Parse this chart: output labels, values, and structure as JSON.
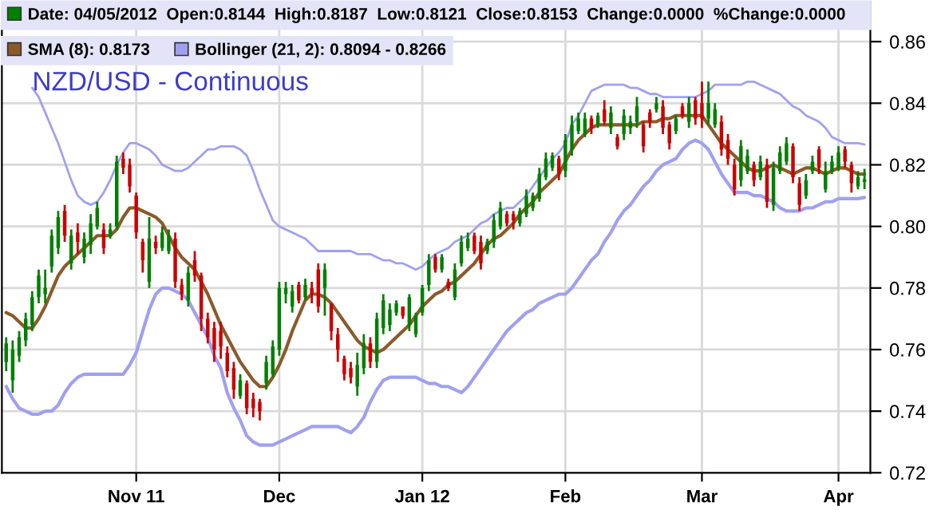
{
  "chart_data": {
    "type": "candlestick",
    "title": "NZD/USD - Continuous",
    "categories": [
      null,
      null,
      null,
      null,
      null,
      null,
      null,
      null,
      null,
      null,
      null,
      null,
      null,
      null,
      null,
      null,
      null,
      null,
      null,
      null,
      "Nov 11",
      null,
      null,
      null,
      null,
      null,
      null,
      null,
      null,
      null,
      null,
      null,
      null,
      null,
      null,
      null,
      null,
      null,
      null,
      null,
      null,
      null,
      "Dec",
      null,
      null,
      null,
      null,
      null,
      null,
      null,
      null,
      null,
      null,
      null,
      null,
      null,
      null,
      null,
      null,
      null,
      null,
      null,
      null,
      null,
      "Jan 12",
      null,
      null,
      null,
      null,
      null,
      null,
      null,
      null,
      null,
      null,
      null,
      null,
      null,
      null,
      null,
      null,
      null,
      null,
      null,
      null,
      null,
      "Feb",
      null,
      null,
      null,
      null,
      null,
      null,
      null,
      null,
      null,
      null,
      null,
      null,
      null,
      null,
      null,
      null,
      null,
      null,
      null,
      null,
      "Mar",
      null,
      null,
      null,
      null,
      null,
      null,
      null,
      null,
      null,
      null,
      null,
      null,
      null,
      null,
      null,
      null,
      null,
      null,
      null,
      null,
      "Apr",
      null,
      null,
      null,
      null
    ],
    "series": [
      {
        "name": "Date: 04/05/2012  Open:0.8144  High:0.8187  Low:0.8121  Close:0.8153  Change:0.0000  %Change:0.0000",
        "color": "#008000",
        "ohlc": [
          [
            0.756,
            0.764,
            0.753,
            0.762
          ],
          [
            0.75,
            0.763,
            0.746,
            0.76
          ],
          [
            0.758,
            0.766,
            0.756,
            0.764
          ],
          [
            0.763,
            0.772,
            0.761,
            0.77
          ],
          [
            0.768,
            0.779,
            0.766,
            0.777
          ],
          [
            0.777,
            0.786,
            0.775,
            0.784
          ],
          [
            0.778,
            0.786,
            0.775,
            0.78
          ],
          [
            0.787,
            0.799,
            0.785,
            0.797
          ],
          [
            0.793,
            0.805,
            0.791,
            0.803
          ],
          [
            0.805,
            0.807,
            0.795,
            0.797
          ],
          [
            0.788,
            0.799,
            0.786,
            0.797
          ],
          [
            0.798,
            0.801,
            0.791,
            0.795
          ],
          [
            0.79,
            0.798,
            0.788,
            0.796
          ],
          [
            0.794,
            0.804,
            0.791,
            0.801
          ],
          [
            0.8,
            0.808,
            0.799,
            0.806
          ],
          [
            0.799,
            0.801,
            0.791,
            0.793
          ],
          [
            0.797,
            0.801,
            0.796,
            0.799
          ],
          [
            0.8,
            0.823,
            0.799,
            0.821
          ],
          [
            0.822,
            0.824,
            0.817,
            0.819
          ],
          [
            0.82,
            0.822,
            0.811,
            0.813
          ],
          [
            0.81,
            0.811,
            0.796,
            0.798
          ],
          [
            0.795,
            0.796,
            0.785,
            0.789
          ],
          [
            0.782,
            0.803,
            0.78,
            0.796
          ],
          [
            0.795,
            0.797,
            0.791,
            0.793
          ],
          [
            0.793,
            0.8,
            0.792,
            0.798
          ],
          [
            0.792,
            0.799,
            0.791,
            0.797
          ],
          [
            0.796,
            0.798,
            0.78,
            0.782
          ],
          [
            0.781,
            0.783,
            0.776,
            0.778
          ],
          [
            0.776,
            0.787,
            0.774,
            0.785
          ],
          [
            0.789,
            0.792,
            0.782,
            0.784
          ],
          [
            0.784,
            0.785,
            0.766,
            0.77
          ],
          [
            0.77,
            0.772,
            0.762,
            0.764
          ],
          [
            0.767,
            0.769,
            0.756,
            0.76
          ],
          [
            0.766,
            0.769,
            0.757,
            0.761
          ],
          [
            0.759,
            0.761,
            0.751,
            0.753
          ],
          [
            0.754,
            0.756,
            0.744,
            0.747
          ],
          [
            0.745,
            0.752,
            0.744,
            0.75
          ],
          [
            0.749,
            0.75,
            0.739,
            0.741
          ],
          [
            0.744,
            0.746,
            0.738,
            0.741
          ],
          [
            0.743,
            0.744,
            0.737,
            0.74
          ],
          [
            0.749,
            0.758,
            0.747,
            0.756
          ],
          [
            0.752,
            0.763,
            0.751,
            0.761
          ],
          [
            0.76,
            0.782,
            0.758,
            0.78
          ],
          [
            0.778,
            0.782,
            0.775,
            0.78
          ],
          [
            0.774,
            0.781,
            0.772,
            0.779
          ],
          [
            0.781,
            0.782,
            0.775,
            0.776
          ],
          [
            0.777,
            0.783,
            0.776,
            0.781
          ],
          [
            0.78,
            0.782,
            0.775,
            0.778
          ],
          [
            0.786,
            0.788,
            0.772,
            0.774
          ],
          [
            0.78,
            0.788,
            0.771,
            0.786
          ],
          [
            0.775,
            0.775,
            0.763,
            0.766
          ],
          [
            0.765,
            0.767,
            0.756,
            0.76
          ],
          [
            0.757,
            0.758,
            0.75,
            0.752
          ],
          [
            0.754,
            0.756,
            0.749,
            0.751
          ],
          [
            0.748,
            0.759,
            0.745,
            0.755
          ],
          [
            0.754,
            0.765,
            0.752,
            0.762
          ],
          [
            0.762,
            0.764,
            0.754,
            0.756
          ],
          [
            0.756,
            0.772,
            0.754,
            0.77
          ],
          [
            0.767,
            0.778,
            0.765,
            0.776
          ],
          [
            0.768,
            0.775,
            0.766,
            0.773
          ],
          [
            0.772,
            0.776,
            0.771,
            0.775
          ],
          [
            0.774,
            0.774,
            0.77,
            0.771
          ],
          [
            0.768,
            0.778,
            0.766,
            0.777
          ],
          [
            0.765,
            0.772,
            0.764,
            0.771
          ],
          [
            0.772,
            0.781,
            0.771,
            0.78
          ],
          [
            0.781,
            0.791,
            0.779,
            0.789
          ],
          [
            0.79,
            0.791,
            0.785,
            0.786
          ],
          [
            0.786,
            0.791,
            0.785,
            0.79
          ],
          [
            0.782,
            0.783,
            0.779,
            0.78
          ],
          [
            0.777,
            0.788,
            0.776,
            0.786
          ],
          [
            0.788,
            0.797,
            0.787,
            0.795
          ],
          [
            0.793,
            0.798,
            0.792,
            0.796
          ],
          [
            0.797,
            0.798,
            0.791,
            0.792
          ],
          [
            0.795,
            0.797,
            0.786,
            0.788
          ],
          [
            0.792,
            0.796,
            0.791,
            0.795
          ],
          [
            0.795,
            0.804,
            0.793,
            0.802
          ],
          [
            0.8,
            0.808,
            0.799,
            0.806
          ],
          [
            0.804,
            0.805,
            0.8,
            0.801
          ],
          [
            0.804,
            0.805,
            0.799,
            0.802
          ],
          [
            0.801,
            0.806,
            0.8,
            0.805
          ],
          [
            0.804,
            0.812,
            0.803,
            0.81
          ],
          [
            0.806,
            0.811,
            0.805,
            0.81
          ],
          [
            0.809,
            0.819,
            0.808,
            0.817
          ],
          [
            0.816,
            0.824,
            0.815,
            0.822
          ],
          [
            0.819,
            0.824,
            0.818,
            0.823
          ],
          [
            0.822,
            0.823,
            0.815,
            0.817
          ],
          [
            0.818,
            0.83,
            0.816,
            0.828
          ],
          [
            0.825,
            0.836,
            0.823,
            0.833
          ],
          [
            0.831,
            0.837,
            0.83,
            0.835
          ],
          [
            0.83,
            0.837,
            0.829,
            0.835
          ],
          [
            0.835,
            0.836,
            0.83,
            0.832
          ],
          [
            0.833,
            0.837,
            0.832,
            0.836
          ],
          [
            0.838,
            0.841,
            0.833,
            0.834
          ],
          [
            0.832,
            0.839,
            0.83,
            0.837
          ],
          [
            0.829,
            0.83,
            0.825,
            0.826
          ],
          [
            0.83,
            0.838,
            0.828,
            0.836
          ],
          [
            0.832,
            0.836,
            0.83,
            0.834
          ],
          [
            0.834,
            0.842,
            0.832,
            0.839
          ],
          [
            0.833,
            0.834,
            0.824,
            0.826
          ],
          [
            0.837,
            0.838,
            0.832,
            0.834
          ],
          [
            0.838,
            0.842,
            0.837,
            0.84
          ],
          [
            0.839,
            0.841,
            0.83,
            0.832
          ],
          [
            0.833,
            0.834,
            0.825,
            0.827
          ],
          [
            0.831,
            0.836,
            0.83,
            0.835
          ],
          [
            0.839,
            0.84,
            0.835,
            0.836
          ],
          [
            0.834,
            0.842,
            0.832,
            0.84
          ],
          [
            0.841,
            0.842,
            0.833,
            0.835
          ],
          [
            0.84,
            0.847,
            0.832,
            0.835
          ],
          [
            0.835,
            0.847,
            0.833,
            0.84
          ],
          [
            0.833,
            0.84,
            0.832,
            0.838
          ],
          [
            0.834,
            0.836,
            0.823,
            0.825
          ],
          [
            0.828,
            0.83,
            0.82,
            0.822
          ],
          [
            0.82,
            0.822,
            0.81,
            0.812
          ],
          [
            0.815,
            0.828,
            0.813,
            0.826
          ],
          [
            0.818,
            0.825,
            0.817,
            0.823
          ],
          [
            0.82,
            0.821,
            0.813,
            0.815
          ],
          [
            0.816,
            0.823,
            0.815,
            0.821
          ],
          [
            0.82,
            0.822,
            0.806,
            0.808
          ],
          [
            0.807,
            0.821,
            0.805,
            0.819
          ],
          [
            0.818,
            0.826,
            0.817,
            0.824
          ],
          [
            0.821,
            0.829,
            0.82,
            0.827
          ],
          [
            0.826,
            0.827,
            0.814,
            0.816
          ],
          [
            0.814,
            0.816,
            0.805,
            0.807
          ],
          [
            0.81,
            0.817,
            0.809,
            0.815
          ],
          [
            0.818,
            0.823,
            0.817,
            0.821
          ],
          [
            0.825,
            0.826,
            0.817,
            0.819
          ],
          [
            0.812,
            0.821,
            0.811,
            0.818
          ],
          [
            0.818,
            0.823,
            0.817,
            0.821
          ],
          [
            0.819,
            0.826,
            0.818,
            0.824
          ],
          [
            0.825,
            0.826,
            0.819,
            0.821
          ],
          [
            0.82,
            0.821,
            0.811,
            0.814
          ],
          [
            0.813,
            0.818,
            0.812,
            0.816
          ],
          [
            0.8144,
            0.8187,
            0.8121,
            0.8153
          ]
        ],
        "colors": [
          "#008000",
          "#008000",
          "#008000",
          "#008000",
          "#008000",
          "#008000",
          "#008000",
          "#008000",
          "#008000",
          "#cc0000",
          "#008000",
          "#cc0000",
          "#008000",
          "#008000",
          "#008000",
          "#cc0000",
          "#008000",
          "#008000",
          "#cc0000",
          "#cc0000",
          "#cc0000",
          "#cc0000",
          "#008000",
          "#cc0000",
          "#008000",
          "#008000",
          "#cc0000",
          "#cc0000",
          "#008000",
          "#cc0000",
          "#cc0000",
          "#cc0000",
          "#cc0000",
          "#cc0000",
          "#cc0000",
          "#cc0000",
          "#008000",
          "#cc0000",
          "#cc0000",
          "#cc0000",
          "#008000",
          "#008000",
          "#008000",
          "#008000",
          "#008000",
          "#cc0000",
          "#008000",
          "#cc0000",
          "#cc0000",
          "#008000",
          "#cc0000",
          "#cc0000",
          "#cc0000",
          "#cc0000",
          "#008000",
          "#008000",
          "#cc0000",
          "#008000",
          "#008000",
          "#008000",
          "#008000",
          "#cc0000",
          "#008000",
          "#008000",
          "#008000",
          "#008000",
          "#cc0000",
          "#008000",
          "#cc0000",
          "#008000",
          "#008000",
          "#008000",
          "#cc0000",
          "#cc0000",
          "#008000",
          "#008000",
          "#008000",
          "#cc0000",
          "#cc0000",
          "#008000",
          "#008000",
          "#008000",
          "#008000",
          "#008000",
          "#008000",
          "#cc0000",
          "#008000",
          "#008000",
          "#008000",
          "#008000",
          "#cc0000",
          "#008000",
          "#cc0000",
          "#008000",
          "#cc0000",
          "#008000",
          "#008000",
          "#008000",
          "#cc0000",
          "#cc0000",
          "#008000",
          "#cc0000",
          "#cc0000",
          "#008000",
          "#cc0000",
          "#008000",
          "#cc0000",
          "#cc0000",
          "#008000",
          "#008000",
          "#cc0000",
          "#cc0000",
          "#cc0000",
          "#008000",
          "#008000",
          "#cc0000",
          "#008000",
          "#cc0000",
          "#008000",
          "#008000",
          "#008000",
          "#cc0000",
          "#cc0000",
          "#008000",
          "#008000",
          "#cc0000",
          "#008000",
          "#008000",
          "#008000",
          "#cc0000",
          "#cc0000",
          "#008000",
          "#008000"
        ]
      },
      {
        "name": "SMA (8): 0.8173",
        "type": "line",
        "color": "#8b5a2b",
        "values": [
          0.772,
          0.771,
          0.769,
          0.767,
          0.767,
          0.77,
          0.774,
          0.779,
          0.784,
          0.787,
          0.789,
          0.791,
          0.793,
          0.795,
          0.797,
          0.797,
          0.797,
          0.799,
          0.803,
          0.806,
          0.806,
          0.805,
          0.804,
          0.803,
          0.801,
          0.797,
          0.793,
          0.79,
          0.788,
          0.786,
          0.782,
          0.778,
          0.773,
          0.768,
          0.764,
          0.76,
          0.756,
          0.753,
          0.75,
          0.748,
          0.748,
          0.751,
          0.755,
          0.76,
          0.766,
          0.771,
          0.776,
          0.778,
          0.778,
          0.777,
          0.775,
          0.772,
          0.769,
          0.766,
          0.763,
          0.761,
          0.76,
          0.759,
          0.76,
          0.762,
          0.764,
          0.766,
          0.768,
          0.771,
          0.774,
          0.776,
          0.778,
          0.779,
          0.781,
          0.782,
          0.784,
          0.786,
          0.788,
          0.791,
          0.794,
          0.796,
          0.797,
          0.799,
          0.801,
          0.804,
          0.806,
          0.808,
          0.811,
          0.813,
          0.815,
          0.817,
          0.821,
          0.825,
          0.828,
          0.83,
          0.832,
          0.833,
          0.833,
          0.833,
          0.833,
          0.833,
          0.833,
          0.833,
          0.834,
          0.834,
          0.834,
          0.835,
          0.835,
          0.836,
          0.836,
          0.836,
          0.836,
          0.836,
          0.833,
          0.83,
          0.827,
          0.825,
          0.823,
          0.821,
          0.819,
          0.818,
          0.818,
          0.819,
          0.82,
          0.819,
          0.818,
          0.817,
          0.818,
          0.819,
          0.819,
          0.818,
          0.817,
          0.818,
          0.819,
          0.819,
          0.818,
          0.817,
          0.817
        ]
      },
      {
        "name": "Bollinger (21, 2): 0.8094 - 0.8266",
        "type": "line",
        "color": "#a0a0f0",
        "values": [
          null,
          null,
          null,
          null,
          0.845,
          0.842,
          0.837,
          0.832,
          0.827,
          0.821,
          0.815,
          0.81,
          0.808,
          0.807,
          0.808,
          0.811,
          0.815,
          0.82,
          0.824,
          0.827,
          0.827,
          0.826,
          0.825,
          0.823,
          0.82,
          0.819,
          0.818,
          0.818,
          0.819,
          0.821,
          0.823,
          0.825,
          0.825,
          0.826,
          0.826,
          0.826,
          0.825,
          0.823,
          0.818,
          0.812,
          0.807,
          0.802,
          0.8,
          0.799,
          0.798,
          0.797,
          0.796,
          0.794,
          0.792,
          0.792,
          0.792,
          0.792,
          0.792,
          0.792,
          0.791,
          0.791,
          0.791,
          0.79,
          0.789,
          0.789,
          0.788,
          0.788,
          0.787,
          0.786,
          0.787,
          0.789,
          0.791,
          0.792,
          0.793,
          0.795,
          0.796,
          0.797,
          0.799,
          0.801,
          0.802,
          0.804,
          0.805,
          0.806,
          0.806,
          0.808,
          0.81,
          0.813,
          0.816,
          0.819,
          0.822,
          0.824,
          0.827,
          0.833,
          0.836,
          0.84,
          0.844,
          0.845,
          0.846,
          0.846,
          0.846,
          0.846,
          0.845,
          0.845,
          0.844,
          0.843,
          0.843,
          0.842,
          0.842,
          0.842,
          0.842,
          0.842,
          0.842,
          0.843,
          0.844,
          0.846,
          0.846,
          0.846,
          0.846,
          0.846,
          0.847,
          0.847,
          0.846,
          0.845,
          0.844,
          0.843,
          0.841,
          0.839,
          0.838,
          0.836,
          0.835,
          0.834,
          0.832,
          0.829,
          0.828,
          0.827,
          0.827,
          0.827,
          0.8266
        ]
      },
      {
        "type": "line",
        "color": "#a0a0f0",
        "values": [
          0.748,
          0.744,
          0.741,
          0.74,
          0.739,
          0.739,
          0.74,
          0.74,
          0.742,
          0.746,
          0.749,
          0.751,
          0.752,
          0.752,
          0.752,
          0.752,
          0.752,
          0.752,
          0.752,
          0.755,
          0.759,
          0.766,
          0.773,
          0.778,
          0.78,
          0.78,
          0.779,
          0.778,
          0.776,
          0.772,
          0.768,
          0.764,
          0.758,
          0.754,
          0.746,
          0.741,
          0.737,
          0.732,
          0.73,
          0.729,
          0.729,
          0.729,
          0.73,
          0.731,
          0.732,
          0.733,
          0.734,
          0.735,
          0.735,
          0.735,
          0.735,
          0.735,
          0.734,
          0.733,
          0.735,
          0.738,
          0.743,
          0.747,
          0.75,
          0.751,
          0.751,
          0.751,
          0.751,
          0.751,
          0.75,
          0.749,
          0.749,
          0.748,
          0.748,
          0.747,
          0.746,
          0.748,
          0.751,
          0.754,
          0.757,
          0.76,
          0.763,
          0.766,
          0.768,
          0.77,
          0.772,
          0.773,
          0.775,
          0.776,
          0.777,
          0.778,
          0.778,
          0.78,
          0.783,
          0.786,
          0.789,
          0.791,
          0.795,
          0.798,
          0.802,
          0.805,
          0.807,
          0.81,
          0.813,
          0.815,
          0.818,
          0.82,
          0.821,
          0.822,
          0.825,
          0.827,
          0.828,
          0.827,
          0.825,
          0.821,
          0.817,
          0.814,
          0.811,
          0.811,
          0.811,
          0.81,
          0.81,
          0.809,
          0.808,
          0.806,
          0.805,
          0.805,
          0.805,
          0.806,
          0.806,
          0.807,
          0.808,
          0.808,
          0.809,
          0.809,
          0.809,
          0.809,
          0.8094
        ]
      }
    ],
    "ylim": [
      0.72,
      0.873
    ],
    "yticks": [
      0.72,
      0.74,
      0.76,
      0.78,
      {
        "value": 0.8,
        "label": "0.80"
      },
      0.82,
      0.84,
      0.86
    ],
    "grid": true,
    "legend": "top"
  }
}
